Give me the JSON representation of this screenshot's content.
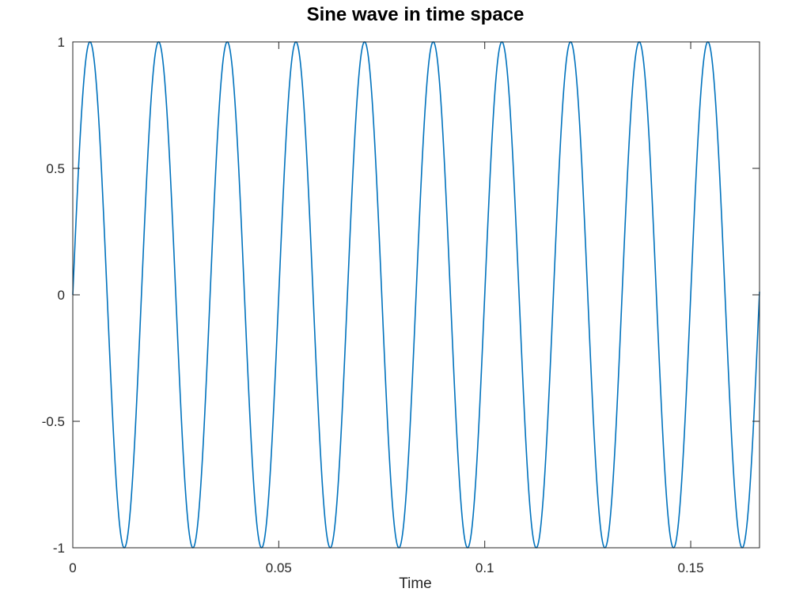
{
  "chart_data": {
    "type": "line",
    "title": "Sine wave in time space",
    "xlabel": "Time",
    "ylabel": "",
    "xlim": [
      0,
      0.1667
    ],
    "ylim": [
      -1,
      1
    ],
    "x_ticks": [
      0,
      0.05,
      0.1,
      0.15
    ],
    "x_tick_labels": [
      "0",
      "0.05",
      "0.1",
      "0.15"
    ],
    "y_ticks": [
      -1,
      -0.5,
      0,
      0.5,
      1
    ],
    "y_tick_labels": [
      "-1",
      "-0.5",
      "0",
      "0.5",
      "1"
    ],
    "grid": false,
    "box": true,
    "series": [
      {
        "function": "sin(2*pi*f*t)",
        "frequency_hz": 60,
        "amplitude": 1,
        "t_start": 0,
        "t_end": 0.1667,
        "color": "#0072BD"
      }
    ]
  },
  "colors": {
    "background": "#ffffff",
    "axes": "#262626",
    "line": "#0072BD",
    "title": "#000000"
  }
}
